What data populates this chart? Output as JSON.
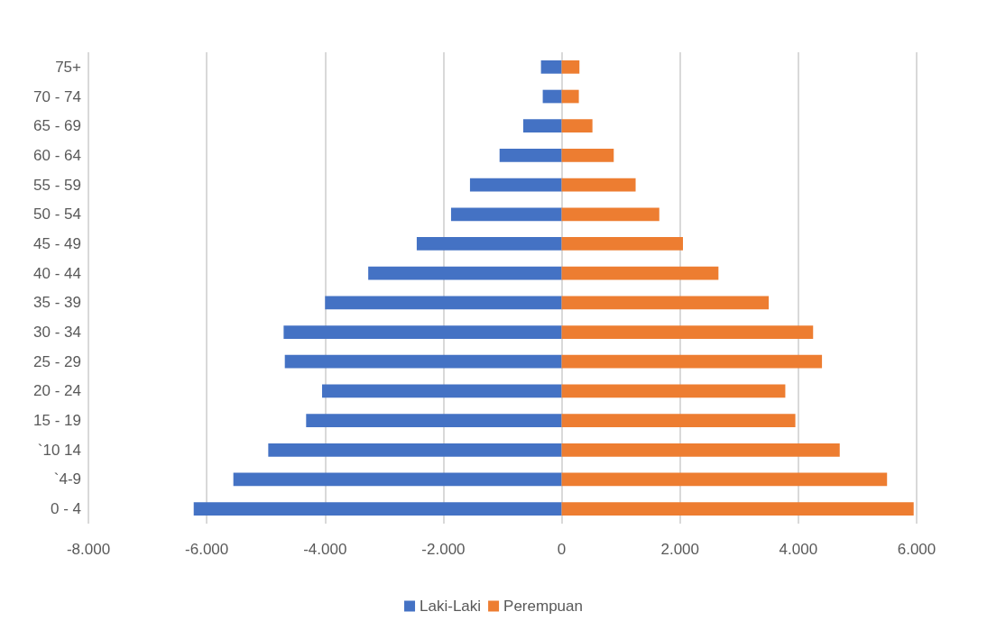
{
  "chart_data": {
    "type": "bar",
    "orientation": "horizontal",
    "categories": [
      "75+",
      "70 - 74",
      "65 - 69",
      "60 - 64",
      "55 - 59",
      "50 - 54",
      "45 - 49",
      "40 - 44",
      "35 - 39",
      "30 - 34",
      "25 - 29",
      "20 - 24",
      "15 - 19",
      "`10 14",
      "`4-9",
      "0 - 4"
    ],
    "series": [
      {
        "name": "Laki-Laki",
        "color": "#4472c4",
        "values": [
          -350,
          -320,
          -650,
          -1050,
          -1550,
          -1870,
          -2450,
          -3270,
          -4000,
          -4700,
          -4680,
          -4050,
          -4320,
          -4960,
          -5550,
          -6220
        ]
      },
      {
        "name": "Perempuan",
        "color": "#ed7d31",
        "values": [
          300,
          290,
          520,
          880,
          1250,
          1650,
          2050,
          2650,
          3500,
          4250,
          4400,
          3780,
          3950,
          4700,
          5500,
          5950
        ]
      }
    ],
    "xlim": [
      -8000,
      6000
    ],
    "xticks": [
      {
        "value": -8000,
        "label": "-8.000"
      },
      {
        "value": -6000,
        "label": "-6.000"
      },
      {
        "value": -4000,
        "label": "-4.000"
      },
      {
        "value": -2000,
        "label": "-2.000"
      },
      0,
      {
        "value": 2000,
        "label": "2.000"
      },
      {
        "value": 4000,
        "label": "4.000"
      },
      {
        "value": 6000,
        "label": "6.000"
      }
    ],
    "grid": "x",
    "legend": "bottom",
    "stacked": true
  }
}
